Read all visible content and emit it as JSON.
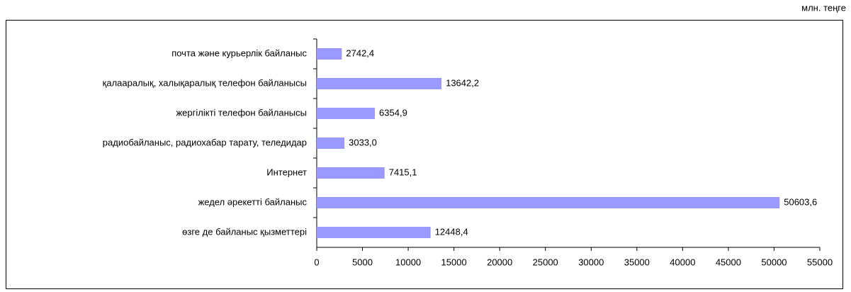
{
  "chart_data": {
    "type": "bar",
    "orientation": "horizontal",
    "unit_label": "млн. теңге",
    "categories": [
      "почта және курьерлік байланыс",
      "қалааралық, халықаралық телефон байланысы",
      "жергілікті телефон байланысы",
      "радиобайланыс, радиохабар тарату, теледидар",
      "Интернет",
      "жедел әрекетті  байланыс",
      "өзге де байланыс қызметтері"
    ],
    "values": [
      2742.4,
      13642.2,
      6354.9,
      3033.0,
      7415.1,
      50603.6,
      12448.4
    ],
    "value_labels": [
      "2742,4",
      "13642,2",
      "6354,9",
      "3033,0",
      "7415,1",
      "50603,6",
      "12448,4"
    ],
    "color": "#9999ff",
    "xlim": [
      0,
      55000
    ],
    "xticks": [
      0,
      5000,
      10000,
      15000,
      20000,
      25000,
      30000,
      35000,
      40000,
      45000,
      50000,
      55000
    ]
  }
}
